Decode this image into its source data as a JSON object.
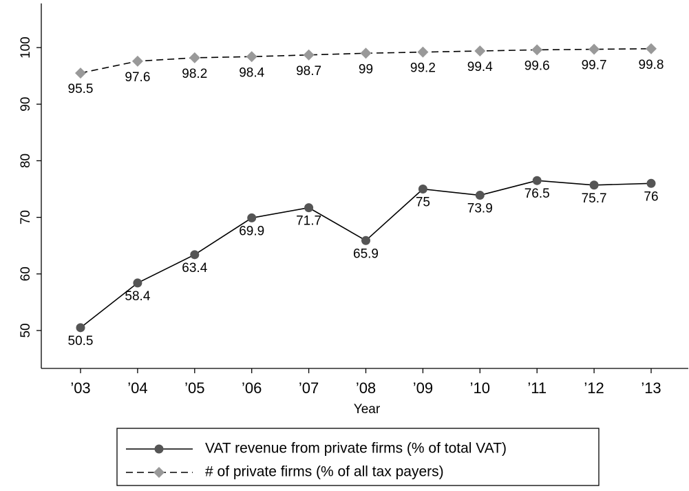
{
  "chart_data": {
    "type": "line",
    "x_label": "Year",
    "categories": [
      "’03",
      "’04",
      "’05",
      "’06",
      "’07",
      "’08",
      "’09",
      "’10",
      "’11",
      "’12",
      "’13"
    ],
    "series": [
      {
        "name": "VAT revenue from private firms (% of total VAT)",
        "color": "#555555",
        "marker": "circle",
        "dash": "solid",
        "values": [
          50.5,
          58.4,
          63.4,
          69.9,
          71.7,
          65.9,
          75,
          73.9,
          76.5,
          75.7,
          76
        ]
      },
      {
        "name": "# of private firms (% of all tax payers)",
        "color": "#999999",
        "marker": "diamond",
        "dash": "dashed",
        "values": [
          95.5,
          97.6,
          98.2,
          98.4,
          98.7,
          99,
          99.2,
          99.4,
          99.6,
          99.7,
          99.8
        ]
      }
    ],
    "ylim": [
      43.3,
      107.8
    ],
    "yticks": [
      50,
      60,
      70,
      80,
      90,
      100
    ],
    "grid": false
  }
}
